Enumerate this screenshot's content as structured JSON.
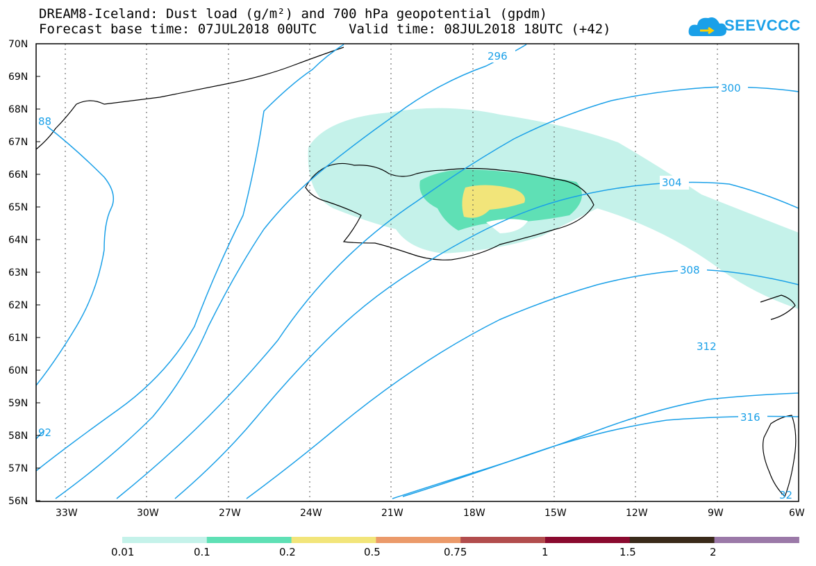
{
  "header": {
    "line1": "DREAM8-Iceland: Dust load (g/m²) and 700 hPa geopotential (gpdm)",
    "line2": "Forecast base time: 07JUL2018 00UTC    Valid time: 08JUL2018 18UTC (+42)",
    "logo_text": "SEEVCCC"
  },
  "map": {
    "lat_ticks": [
      "70N",
      "69N",
      "68N",
      "67N",
      "66N",
      "65N",
      "64N",
      "63N",
      "62N",
      "61N",
      "60N",
      "59N",
      "58N",
      "57N",
      "56N"
    ],
    "lon_ticks": [
      "33W",
      "30W",
      "27W",
      "24W",
      "21W",
      "18W",
      "15W",
      "12W",
      "9W",
      "6W"
    ],
    "contour_labels": [
      "296",
      "300",
      "304",
      "308",
      "312",
      "316",
      "88",
      "92",
      "32"
    ],
    "contour_color": "#1aa0e8"
  },
  "legend": {
    "colors": [
      "#c5f2ea",
      "#5fe0b5",
      "#f2e57a",
      "#eb9a6a",
      "#b24d4d",
      "#8a0a2f",
      "#3a2a1a",
      "#9b79a8"
    ],
    "labels": [
      "0.01",
      "0.1",
      "0.2",
      "0.5",
      "0.75",
      "1",
      "1.5",
      "2"
    ]
  }
}
